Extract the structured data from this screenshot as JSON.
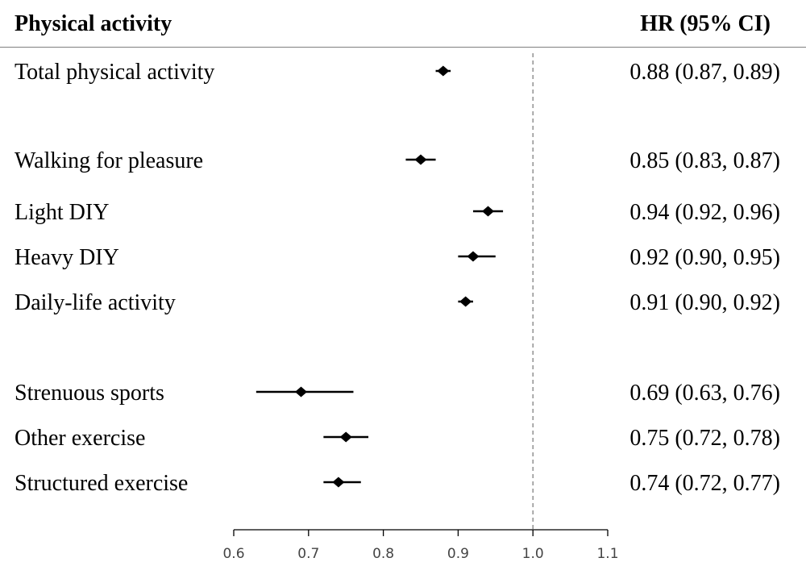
{
  "header": {
    "left": "Physical activity",
    "right": "HR (95% CI)"
  },
  "chart_data": {
    "type": "forest",
    "rows": [
      {
        "label": "Total physical activity",
        "hr": 0.88,
        "low": 0.87,
        "high": 0.89,
        "text": "0.88 (0.87, 0.89)"
      },
      {
        "label": "Walking for pleasure",
        "hr": 0.85,
        "low": 0.83,
        "high": 0.87,
        "text": "0.85 (0.83, 0.87)"
      },
      {
        "label": "Light DIY",
        "hr": 0.94,
        "low": 0.92,
        "high": 0.96,
        "text": "0.94 (0.92, 0.96)"
      },
      {
        "label": "Heavy DIY",
        "hr": 0.92,
        "low": 0.9,
        "high": 0.95,
        "text": "0.92 (0.90, 0.95)"
      },
      {
        "label": "Daily-life activity",
        "hr": 0.91,
        "low": 0.9,
        "high": 0.92,
        "text": "0.91 (0.90, 0.92)"
      },
      {
        "label": "Strenuous sports",
        "hr": 0.69,
        "low": 0.63,
        "high": 0.76,
        "text": "0.69 (0.63, 0.76)"
      },
      {
        "label": "Other exercise",
        "hr": 0.75,
        "low": 0.72,
        "high": 0.78,
        "text": "0.75 (0.72, 0.78)"
      },
      {
        "label": "Structured exercise",
        "hr": 0.74,
        "low": 0.72,
        "high": 0.77,
        "text": "0.74 (0.72, 0.77)"
      }
    ],
    "xlim": [
      0.6,
      1.1
    ],
    "xticks": [
      "0.6",
      "0.7",
      "0.8",
      "0.9",
      "1.0",
      "1.1"
    ],
    "reference_line": 1.0,
    "reference_style": "dashed",
    "xlabel": "",
    "grid": false,
    "marker": "diamond",
    "colors": {
      "marker": "#000000",
      "ci_line": "#000000",
      "reference": "#808080",
      "axis": "#000000"
    }
  }
}
